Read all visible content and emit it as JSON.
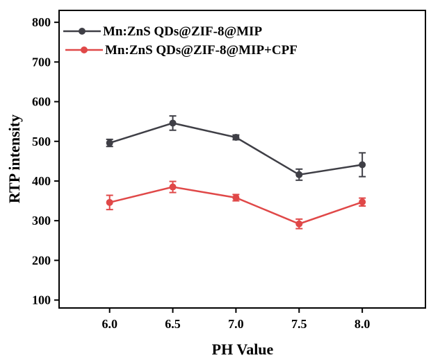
{
  "chart_data": {
    "type": "line",
    "xlabel": "PH Value",
    "ylabel": "RTP intensity",
    "x": [
      6.0,
      6.5,
      7.0,
      7.5,
      8.0
    ],
    "x_tick_labels": [
      "6.0",
      "6.5",
      "7.0",
      "7.5",
      "8.0"
    ],
    "xlim": [
      5.6,
      8.5
    ],
    "ylim": [
      80,
      830
    ],
    "y_ticks": [
      100,
      200,
      300,
      400,
      500,
      600,
      700,
      800
    ],
    "grid": false,
    "legend_position": "top-left",
    "series": [
      {
        "name": "Mn:ZnS QDs@ZIF-8@MIP",
        "color": "#3f3f46",
        "values": [
          496,
          546,
          510,
          416,
          441
        ],
        "errors": [
          9,
          18,
          6,
          14,
          30
        ]
      },
      {
        "name": "Mn:ZnS QDs@ZIF-8@MIP+CPF",
        "color": "#e04848",
        "values": [
          346,
          385,
          358,
          292,
          347
        ],
        "errors": [
          18,
          14,
          8,
          12,
          10
        ]
      }
    ]
  }
}
